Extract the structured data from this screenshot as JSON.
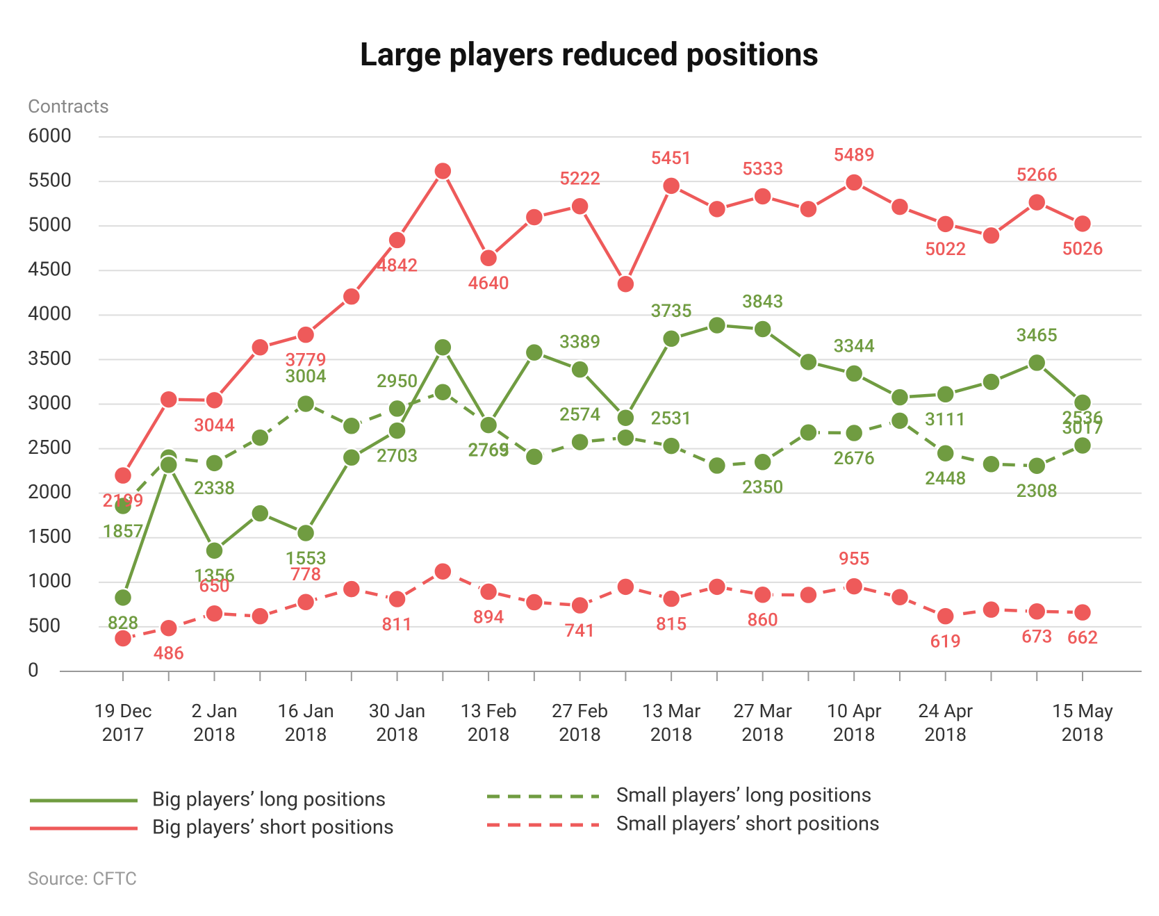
{
  "chart_data": {
    "type": "line",
    "title": "Large players reduced positions",
    "y_label": "Contracts",
    "source": "Source: CFTC",
    "categories": [
      "19 Dec 2017",
      null,
      "2 Jan 2018",
      null,
      "16 Jan 2018",
      null,
      "30 Jan 2018",
      null,
      "13 Feb 2018",
      null,
      "27 Feb 2018",
      null,
      "13 Mar 2018",
      null,
      "27 Mar 2018",
      null,
      "10 Apr 2018",
      null,
      "24 Apr 2018",
      null,
      null,
      "15 May 2018"
    ],
    "ylim": [
      0,
      6000
    ],
    "yticks": [
      0,
      500,
      1000,
      1500,
      2000,
      2500,
      3000,
      3500,
      4000,
      4500,
      5000,
      5500,
      6000
    ],
    "grid": true,
    "series": [
      {
        "name": "Big players’ long positions",
        "color": "#709c41",
        "dash": false,
        "values": [
          828,
          2318,
          1356,
          1774,
          1553,
          2401,
          2703,
          3638,
          2765,
          3580,
          3389,
          2846,
          3735,
          3886,
          3843,
          3473,
          3344,
          3077,
          3111,
          3250,
          3465,
          3017
        ],
        "value_labels": [
          "828",
          null,
          "1356",
          null,
          "1553",
          null,
          "2703",
          null,
          "2765",
          null,
          "3389",
          null,
          "3735",
          null,
          "3843",
          null,
          "3344",
          null,
          "3111",
          null,
          "3465",
          "3017"
        ]
      },
      {
        "name": "Big players’ short positions",
        "color": "#ee5a5a",
        "dash": false,
        "values": [
          2199,
          3053,
          3044,
          3638,
          3779,
          4208,
          4842,
          5618,
          4640,
          5099,
          5222,
          4348,
          5451,
          5190,
          5333,
          5190,
          5489,
          5215,
          5022,
          4893,
          5266,
          5026
        ],
        "value_labels": [
          "2199",
          null,
          "3044",
          null,
          "3779",
          null,
          "4842",
          null,
          "4640",
          null,
          "5222",
          null,
          "5451",
          null,
          "5333",
          null,
          "5489",
          null,
          "5022",
          null,
          "5266",
          "5026"
        ]
      },
      {
        "name": "Small players’ long positions",
        "color": "#709c41",
        "dash": true,
        "values": [
          1857,
          2401,
          2338,
          2624,
          3004,
          2756,
          2950,
          3135,
          2769,
          2409,
          2574,
          2624,
          2531,
          2310,
          2350,
          2682,
          2676,
          2814,
          2448,
          2327,
          2308,
          2536
        ],
        "value_labels": [
          "1857",
          null,
          "2338",
          null,
          "3004",
          null,
          "2950",
          null,
          "2769",
          null,
          "2574",
          null,
          "2531",
          null,
          "2350",
          null,
          "2676",
          null,
          "2448",
          null,
          "2308",
          "2536"
        ]
      },
      {
        "name": "Small players’ short positions",
        "color": "#ee5a5a",
        "dash": true,
        "values": [
          371,
          486,
          650,
          619,
          778,
          924,
          811,
          1122,
          894,
          776,
          741,
          949,
          815,
          949,
          860,
          858,
          955,
          833,
          619,
          693,
          673,
          662
        ],
        "value_labels": [
          null,
          "486",
          "650",
          null,
          "778",
          null,
          "811",
          null,
          "894",
          null,
          "741",
          null,
          "815",
          null,
          "860",
          null,
          "955",
          null,
          "619",
          null,
          "673",
          "662"
        ]
      }
    ]
  }
}
